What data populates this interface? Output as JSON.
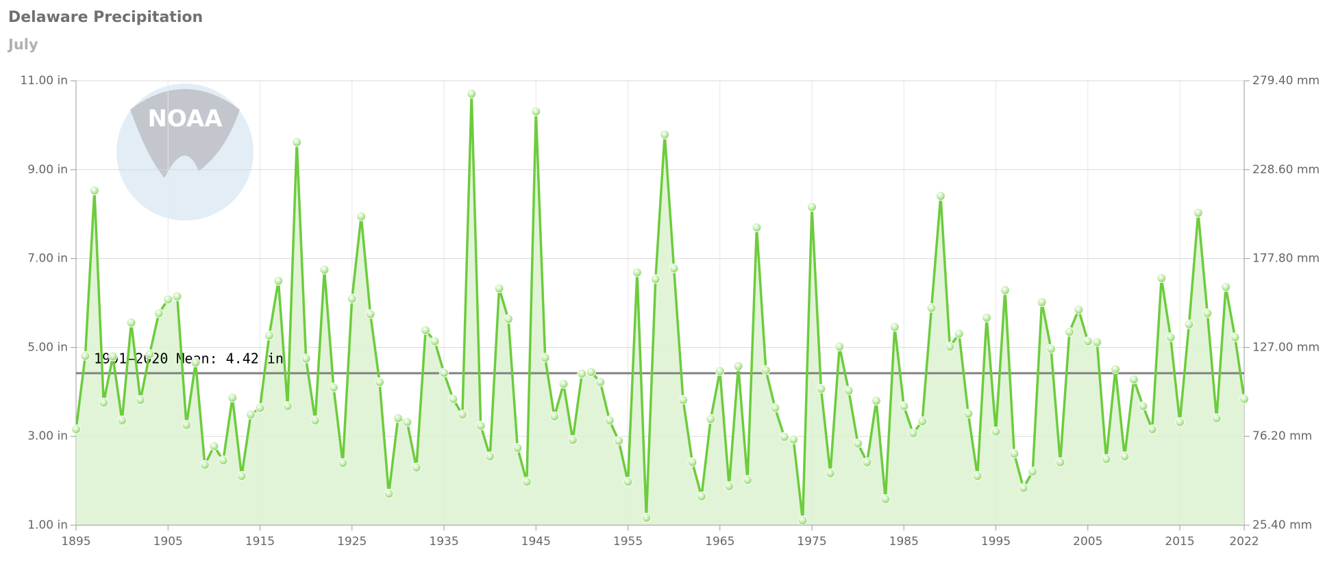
{
  "chart_data": {
    "type": "line",
    "title": "Delaware Precipitation",
    "subtitle": "July",
    "logo": "NOAA",
    "x": [
      1895,
      1896,
      1897,
      1898,
      1899,
      1900,
      1901,
      1902,
      1903,
      1904,
      1905,
      1906,
      1907,
      1908,
      1909,
      1910,
      1911,
      1912,
      1913,
      1914,
      1915,
      1916,
      1917,
      1918,
      1919,
      1920,
      1921,
      1922,
      1923,
      1924,
      1925,
      1926,
      1927,
      1928,
      1929,
      1930,
      1931,
      1932,
      1933,
      1934,
      1935,
      1936,
      1937,
      1938,
      1939,
      1940,
      1941,
      1942,
      1943,
      1944,
      1945,
      1946,
      1947,
      1948,
      1949,
      1950,
      1951,
      1952,
      1953,
      1954,
      1955,
      1956,
      1957,
      1958,
      1959,
      1960,
      1961,
      1962,
      1963,
      1964,
      1965,
      1966,
      1967,
      1968,
      1969,
      1970,
      1971,
      1972,
      1973,
      1974,
      1975,
      1976,
      1977,
      1978,
      1979,
      1980,
      1981,
      1982,
      1983,
      1984,
      1985,
      1986,
      1987,
      1988,
      1989,
      1990,
      1991,
      1992,
      1993,
      1994,
      1995,
      1996,
      1997,
      1998,
      1999,
      2000,
      2001,
      2002,
      2003,
      2004,
      2005,
      2006,
      2007,
      2008,
      2009,
      2010,
      2011,
      2012,
      2013,
      2014,
      2015,
      2016,
      2017,
      2018,
      2019,
      2020,
      2021,
      2022
    ],
    "values": [
      3.16,
      4.81,
      8.53,
      3.76,
      4.8,
      3.36,
      5.56,
      3.82,
      4.85,
      5.77,
      6.08,
      6.15,
      3.26,
      4.66,
      2.36,
      2.78,
      2.46,
      3.87,
      2.11,
      3.49,
      3.64,
      5.27,
      6.5,
      3.68,
      9.62,
      4.75,
      3.36,
      6.75,
      4.1,
      2.4,
      6.1,
      7.95,
      5.75,
      4.22,
      1.71,
      3.41,
      3.32,
      2.3,
      5.39,
      5.14,
      4.43,
      3.84,
      3.49,
      10.71,
      3.24,
      2.55,
      6.33,
      5.64,
      2.74,
      1.98,
      10.31,
      4.77,
      3.45,
      4.18,
      2.92,
      4.41,
      4.45,
      4.22,
      3.36,
      2.9,
      1.98,
      6.69,
      1.17,
      6.54,
      9.79,
      6.78,
      3.82,
      2.42,
      1.65,
      3.39,
      4.47,
      1.88,
      4.58,
      2.02,
      7.7,
      4.49,
      3.64,
      2.99,
      2.93,
      1.11,
      8.16,
      4.07,
      2.17,
      5.02,
      4.03,
      2.84,
      2.42,
      3.8,
      1.59,
      5.46,
      3.68,
      3.07,
      3.34,
      5.89,
      8.41,
      5.02,
      5.31,
      3.51,
      2.11,
      5.67,
      3.11,
      6.29,
      2.61,
      1.84,
      2.21,
      6.02,
      4.97,
      2.42,
      5.35,
      5.85,
      5.14,
      5.12,
      2.49,
      4.51,
      2.55,
      4.28,
      3.68,
      3.16,
      6.56,
      5.23,
      3.32,
      5.52,
      8.03,
      5.77,
      3.41,
      6.36,
      5.23,
      3.84
    ],
    "color": "#6ccc3c",
    "fill_color": "#dcf2d0",
    "xlim": [
      1895,
      2022
    ],
    "xticks": [
      1895,
      1905,
      1915,
      1925,
      1935,
      1945,
      1955,
      1965,
      1975,
      1985,
      1995,
      2005,
      2015,
      2022
    ],
    "ylim": [
      1,
      11
    ],
    "yticks": [
      {
        "value": 1,
        "label": "1.00 in"
      },
      {
        "value": 3,
        "label": "3.00 in"
      },
      {
        "value": 5,
        "label": "5.00 in"
      },
      {
        "value": 7,
        "label": "7.00 in"
      },
      {
        "value": 9,
        "label": "9.00 in"
      },
      {
        "value": 11,
        "label": "11.00 in"
      }
    ],
    "y2lim": [
      25.4,
      279.4
    ],
    "y2ticks": [
      {
        "value": 25.4,
        "label": "25.40 mm"
      },
      {
        "value": 76.2,
        "label": "76.20 mm"
      },
      {
        "value": 127,
        "label": "127.00 mm"
      },
      {
        "value": 177.8,
        "label": "177.80 mm"
      },
      {
        "value": 228.6,
        "label": "228.60 mm"
      },
      {
        "value": 279.4,
        "label": "279.40 mm"
      }
    ],
    "mean_line": {
      "value": 4.42,
      "label": "1991–2020 Mean: 4.42 in",
      "color": "#808080"
    },
    "grid": true
  }
}
